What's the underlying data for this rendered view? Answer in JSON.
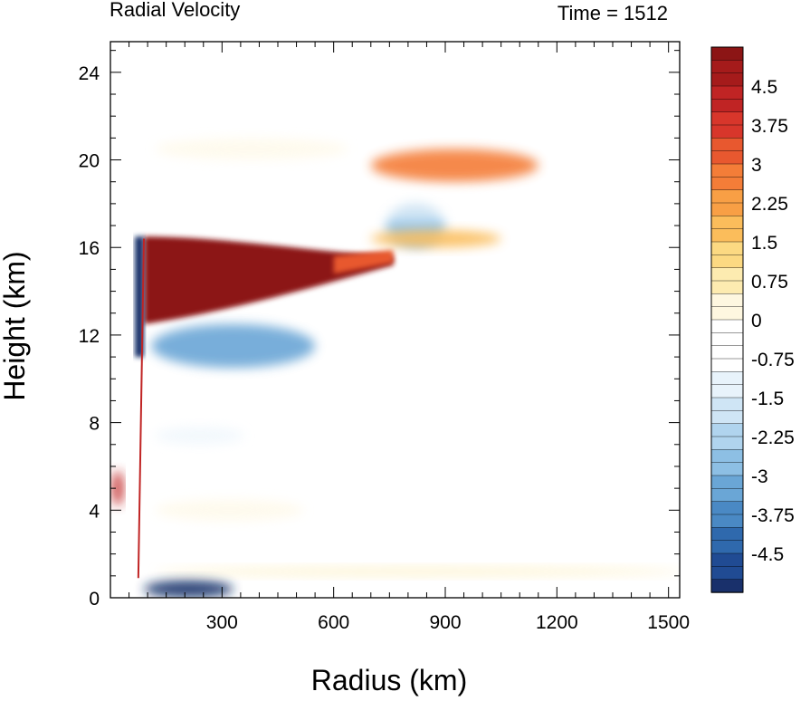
{
  "chart_data": {
    "type": "heatmap",
    "title_left": "Radial Velocity",
    "title_right": "Time = 1512",
    "xlabel": "Radius (km)",
    "ylabel": "Height (km)",
    "xlim": [
      0,
      1530
    ],
    "ylim": [
      0,
      25.4
    ],
    "x_ticks": [
      300,
      600,
      900,
      1200,
      1500
    ],
    "y_ticks": [
      0,
      4,
      8,
      12,
      16,
      20,
      24
    ],
    "colorbar": {
      "range": [
        -5.25,
        5.25
      ],
      "levels": 42,
      "tick_labels": [
        "4.5",
        "3.75",
        "3",
        "2.25",
        "1.5",
        "0.75",
        "0",
        "-0.75",
        "-1.5",
        "-2.25",
        "-3",
        "-3.75",
        "-4.5"
      ],
      "tick_values": [
        4.5,
        3.75,
        3,
        2.25,
        1.5,
        0.75,
        0,
        -0.75,
        -1.5,
        -2.25,
        -3,
        -3.75,
        -4.5
      ],
      "colors_top_to_bottom": [
        "#8c1515",
        "#a51b1b",
        "#c02424",
        "#d8362b",
        "#e8582f",
        "#f47d38",
        "#f89f45",
        "#fbbd5b",
        "#fcd982",
        "#fdebb0",
        "#fef7e0",
        "#ffffff",
        "#ffffff",
        "#e8f3fb",
        "#cfe5f5",
        "#b0d4ee",
        "#8dbfe4",
        "#6aa6d6",
        "#4a89c4",
        "#2f69ad",
        "#204b93",
        "#19306b"
      ]
    },
    "features": [
      {
        "name": "upper-outflow-jet",
        "sign": "positive",
        "value": 5.25,
        "r_range": [
          90,
          760
        ],
        "z_range": [
          12.5,
          16.5
        ]
      },
      {
        "name": "eyewall-inflow-column",
        "sign": "negative",
        "value": -5.25,
        "r": 85,
        "z_range": [
          11,
          16.5
        ]
      },
      {
        "name": "inflow-below-outflow",
        "sign": "negative",
        "value": -3.0,
        "r_range": [
          110,
          550
        ],
        "z_range": [
          10.5,
          12.5
        ]
      },
      {
        "name": "boundary-layer-inflow",
        "sign": "negative",
        "value": -5.25,
        "r_range": [
          90,
          330
        ],
        "z_range": [
          0,
          0.8
        ]
      },
      {
        "name": "outer-outflow-band-upper",
        "sign": "positive",
        "value": 3.0,
        "r_range": [
          700,
          1150
        ],
        "z_range": [
          19,
          20.5
        ]
      },
      {
        "name": "outer-inflow-band",
        "sign": "negative",
        "value": -2.5,
        "r_range": [
          740,
          900
        ],
        "z_range": [
          16,
          18
        ]
      },
      {
        "name": "outer-outflow-band-lower",
        "sign": "positive",
        "value": 2.0,
        "r_range": [
          700,
          1050
        ],
        "z_range": [
          16,
          16.8
        ]
      },
      {
        "name": "near-axis-outflow-spot",
        "sign": "positive",
        "value": 4.5,
        "r": 20,
        "z": 5
      }
    ]
  }
}
